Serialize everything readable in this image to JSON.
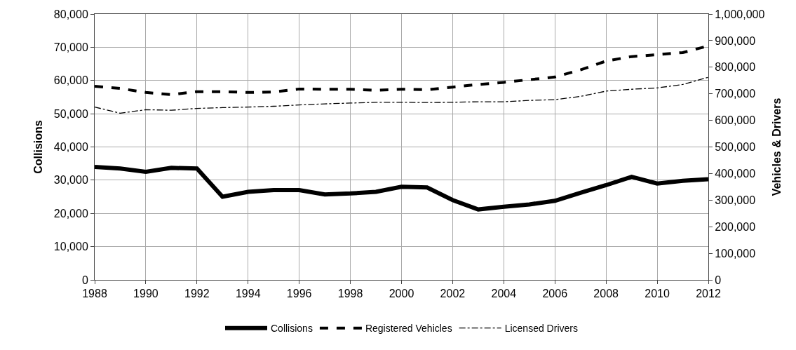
{
  "chart_data": {
    "type": "line",
    "ylabel": "Collisions",
    "y2label": "Vehicles & Drivers",
    "x": [
      1988,
      1989,
      1990,
      1991,
      1992,
      1993,
      1994,
      1995,
      1996,
      1997,
      1998,
      1999,
      2000,
      2001,
      2002,
      2003,
      2004,
      2005,
      2006,
      2007,
      2008,
      2009,
      2010,
      2011,
      2012
    ],
    "series": [
      {
        "name": "Collisions",
        "color": "#000000",
        "line_style": "solid",
        "values": [
          34000,
          33500,
          32500,
          33700,
          33500,
          25000,
          26500,
          27000,
          27000,
          25700,
          26000,
          26500,
          28000,
          27800,
          24000,
          21200,
          22000,
          22700,
          23800,
          26200,
          28500,
          31000,
          29000,
          29800,
          30300
        ]
      },
      {
        "name": "Registered Vehicles",
        "color": "#000000",
        "line_style": "dashed",
        "axis": "y2",
        "values": [
          728000,
          720000,
          705000,
          697000,
          708000,
          708000,
          705000,
          707000,
          718000,
          717000,
          717000,
          713000,
          717000,
          715000,
          725000,
          735000,
          743000,
          753000,
          763000,
          790000,
          823000,
          840000,
          847000,
          855000,
          880000
        ]
      },
      {
        "name": "Licensed Drivers",
        "color": "#000000",
        "line_style": "dashdot",
        "axis": "y2",
        "values": [
          650000,
          627000,
          640000,
          638000,
          645000,
          648000,
          650000,
          653000,
          658000,
          662000,
          665000,
          668000,
          668000,
          667000,
          668000,
          670000,
          670000,
          675000,
          678000,
          690000,
          710000,
          717000,
          722000,
          735000,
          762000
        ]
      }
    ],
    "xlim": [
      1988,
      2012
    ],
    "xticks": [
      1988,
      1990,
      1992,
      1994,
      1996,
      1998,
      2000,
      2002,
      2004,
      2006,
      2008,
      2010,
      2012
    ],
    "ylim": [
      0,
      80000
    ],
    "yticks": [
      {
        "value": 0,
        "label": "0"
      },
      {
        "value": 10000,
        "label": "10,000"
      },
      {
        "value": 20000,
        "label": "20,000"
      },
      {
        "value": 30000,
        "label": "30,000"
      },
      {
        "value": 40000,
        "label": "40,000"
      },
      {
        "value": 50000,
        "label": "50,000"
      },
      {
        "value": 60000,
        "label": "60,000"
      },
      {
        "value": 70000,
        "label": "70,000"
      },
      {
        "value": 80000,
        "label": "80,000"
      }
    ],
    "y2lim": [
      0,
      1000000
    ],
    "y2ticks": [
      {
        "value": 0,
        "label": "0"
      },
      {
        "value": 100000,
        "label": "100,000"
      },
      {
        "value": 200000,
        "label": "200,000"
      },
      {
        "value": 300000,
        "label": "300,000"
      },
      {
        "value": 400000,
        "label": "400,000"
      },
      {
        "value": 500000,
        "label": "500,000"
      },
      {
        "value": 600000,
        "label": "600,000"
      },
      {
        "value": 700000,
        "label": "700,000"
      },
      {
        "value": 800000,
        "label": "800,000"
      },
      {
        "value": 900000,
        "label": "900,000"
      },
      {
        "value": 1000000,
        "label": "1,000,000"
      }
    ],
    "grid": true,
    "legend": "bottom"
  }
}
